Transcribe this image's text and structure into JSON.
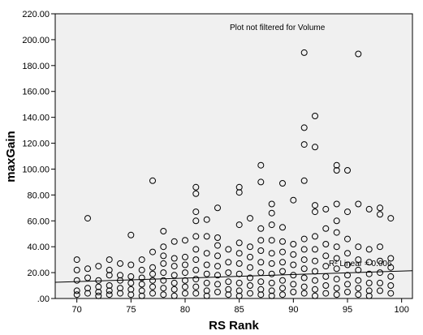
{
  "chart_data": {
    "type": "scatter",
    "xlabel": "RS Rank",
    "ylabel": "maxGain",
    "annotation": "Plot not filtered for Volume",
    "fit_label": "R² Linear = 0.006",
    "xlim": [
      68,
      101
    ],
    "ylim": [
      0,
      220
    ],
    "x_ticks": [
      70,
      75,
      80,
      85,
      90,
      95,
      100
    ],
    "x_tick_labels": [
      "70",
      "75",
      "80",
      "85",
      "90",
      "95",
      "100"
    ],
    "y_ticks": [
      0,
      20,
      40,
      60,
      80,
      100,
      120,
      140,
      160,
      180,
      200,
      220
    ],
    "y_tick_labels": [
      ".00",
      "20.00",
      "40.00",
      "60.00",
      "80.00",
      "100.00",
      "120.00",
      "140.00",
      "160.00",
      "180.00",
      "200.00",
      "220.00"
    ],
    "grid": false,
    "background": "#f0f0f0",
    "marker_color": "#000000",
    "fit_line": {
      "x": [
        68,
        101
      ],
      "y": [
        12.5,
        21.5
      ]
    },
    "points": [
      [
        70,
        30
      ],
      [
        70,
        22
      ],
      [
        70,
        14
      ],
      [
        70,
        6
      ],
      [
        70,
        3
      ],
      [
        71,
        62
      ],
      [
        71,
        23
      ],
      [
        71,
        16
      ],
      [
        71,
        8
      ],
      [
        71,
        4
      ],
      [
        72,
        25
      ],
      [
        72,
        14
      ],
      [
        72,
        9
      ],
      [
        72,
        5
      ],
      [
        72,
        2
      ],
      [
        73,
        30
      ],
      [
        73,
        22
      ],
      [
        73,
        18
      ],
      [
        73,
        10
      ],
      [
        73,
        6
      ],
      [
        73,
        3
      ],
      [
        74,
        27
      ],
      [
        74,
        18
      ],
      [
        74,
        14
      ],
      [
        74,
        8
      ],
      [
        74,
        4
      ],
      [
        75,
        49
      ],
      [
        75,
        26
      ],
      [
        75,
        17
      ],
      [
        75,
        12
      ],
      [
        75,
        7
      ],
      [
        75,
        3
      ],
      [
        76,
        30
      ],
      [
        76,
        22
      ],
      [
        76,
        16
      ],
      [
        76,
        11
      ],
      [
        76,
        6
      ],
      [
        76,
        2
      ],
      [
        77,
        91
      ],
      [
        77,
        36
      ],
      [
        77,
        24
      ],
      [
        77,
        19
      ],
      [
        77,
        14
      ],
      [
        77,
        9
      ],
      [
        77,
        4
      ],
      [
        78,
        52
      ],
      [
        78,
        40
      ],
      [
        78,
        33
      ],
      [
        78,
        27
      ],
      [
        78,
        20
      ],
      [
        78,
        14
      ],
      [
        78,
        8
      ],
      [
        78,
        3
      ],
      [
        79,
        44
      ],
      [
        79,
        31
      ],
      [
        79,
        25
      ],
      [
        79,
        18
      ],
      [
        79,
        12
      ],
      [
        79,
        7
      ],
      [
        79,
        2
      ],
      [
        80,
        45
      ],
      [
        80,
        32
      ],
      [
        80,
        26
      ],
      [
        80,
        20
      ],
      [
        80,
        14
      ],
      [
        80,
        9
      ],
      [
        80,
        4
      ],
      [
        81,
        86
      ],
      [
        81,
        81
      ],
      [
        81,
        67
      ],
      [
        81,
        60
      ],
      [
        81,
        48
      ],
      [
        81,
        38
      ],
      [
        81,
        30
      ],
      [
        81,
        22
      ],
      [
        81,
        15
      ],
      [
        81,
        9
      ],
      [
        81,
        4
      ],
      [
        82,
        61
      ],
      [
        82,
        48
      ],
      [
        82,
        35
      ],
      [
        82,
        26
      ],
      [
        82,
        19
      ],
      [
        82,
        12
      ],
      [
        82,
        6
      ],
      [
        82,
        2
      ],
      [
        83,
        70
      ],
      [
        83,
        47
      ],
      [
        83,
        41
      ],
      [
        83,
        33
      ],
      [
        83,
        25
      ],
      [
        83,
        18
      ],
      [
        83,
        11
      ],
      [
        83,
        5
      ],
      [
        84,
        38
      ],
      [
        84,
        28
      ],
      [
        84,
        20
      ],
      [
        84,
        13
      ],
      [
        84,
        7
      ],
      [
        84,
        3
      ],
      [
        85,
        86
      ],
      [
        85,
        82
      ],
      [
        85,
        57
      ],
      [
        85,
        43
      ],
      [
        85,
        35
      ],
      [
        85,
        27
      ],
      [
        85,
        19
      ],
      [
        85,
        12
      ],
      [
        85,
        6
      ],
      [
        85,
        2
      ],
      [
        86,
        62
      ],
      [
        86,
        40
      ],
      [
        86,
        32
      ],
      [
        86,
        24
      ],
      [
        86,
        16
      ],
      [
        86,
        10
      ],
      [
        86,
        4
      ],
      [
        87,
        103
      ],
      [
        87,
        90
      ],
      [
        87,
        54
      ],
      [
        87,
        45
      ],
      [
        87,
        37
      ],
      [
        87,
        28
      ],
      [
        87,
        20
      ],
      [
        87,
        13
      ],
      [
        87,
        7
      ],
      [
        87,
        3
      ],
      [
        88,
        73
      ],
      [
        88,
        66
      ],
      [
        88,
        57
      ],
      [
        88,
        45
      ],
      [
        88,
        35
      ],
      [
        88,
        27
      ],
      [
        88,
        19
      ],
      [
        88,
        12
      ],
      [
        88,
        6
      ],
      [
        88,
        2
      ],
      [
        89,
        89
      ],
      [
        89,
        55
      ],
      [
        89,
        44
      ],
      [
        89,
        36
      ],
      [
        89,
        28
      ],
      [
        89,
        21
      ],
      [
        89,
        14
      ],
      [
        89,
        8
      ],
      [
        89,
        3
      ],
      [
        90,
        76
      ],
      [
        90,
        42
      ],
      [
        90,
        34
      ],
      [
        90,
        26
      ],
      [
        90,
        18
      ],
      [
        90,
        11
      ],
      [
        90,
        5
      ],
      [
        91,
        190
      ],
      [
        91,
        132
      ],
      [
        91,
        119
      ],
      [
        91,
        91
      ],
      [
        91,
        46
      ],
      [
        91,
        38
      ],
      [
        91,
        30
      ],
      [
        91,
        23
      ],
      [
        91,
        16
      ],
      [
        91,
        9
      ],
      [
        91,
        4
      ],
      [
        92,
        141
      ],
      [
        92,
        117
      ],
      [
        92,
        72
      ],
      [
        92,
        67
      ],
      [
        92,
        48
      ],
      [
        92,
        38
      ],
      [
        92,
        29
      ],
      [
        92,
        21
      ],
      [
        92,
        14
      ],
      [
        92,
        7
      ],
      [
        92,
        2
      ],
      [
        93,
        69
      ],
      [
        93,
        54
      ],
      [
        93,
        42
      ],
      [
        93,
        33
      ],
      [
        93,
        25
      ],
      [
        93,
        17
      ],
      [
        93,
        10
      ],
      [
        93,
        4
      ],
      [
        94,
        103
      ],
      [
        94,
        99
      ],
      [
        94,
        73
      ],
      [
        94,
        60
      ],
      [
        94,
        51
      ],
      [
        94,
        40
      ],
      [
        94,
        31
      ],
      [
        94,
        23
      ],
      [
        94,
        15
      ],
      [
        94,
        8
      ],
      [
        94,
        3
      ],
      [
        95,
        99
      ],
      [
        95,
        67
      ],
      [
        95,
        46
      ],
      [
        95,
        35
      ],
      [
        95,
        26
      ],
      [
        95,
        18
      ],
      [
        95,
        11
      ],
      [
        95,
        5
      ],
      [
        96,
        189
      ],
      [
        96,
        73
      ],
      [
        96,
        40
      ],
      [
        96,
        30
      ],
      [
        96,
        22
      ],
      [
        96,
        14
      ],
      [
        96,
        8
      ],
      [
        96,
        3
      ],
      [
        97,
        69
      ],
      [
        97,
        38
      ],
      [
        97,
        28
      ],
      [
        97,
        19
      ],
      [
        97,
        12
      ],
      [
        97,
        6
      ],
      [
        97,
        2
      ],
      [
        98,
        70
      ],
      [
        98,
        65
      ],
      [
        98,
        40
      ],
      [
        98,
        29
      ],
      [
        98,
        20
      ],
      [
        98,
        12
      ],
      [
        98,
        6
      ],
      [
        99,
        62
      ],
      [
        99,
        31
      ],
      [
        99,
        24
      ],
      [
        99,
        17
      ],
      [
        99,
        10
      ],
      [
        99,
        4
      ]
    ]
  }
}
